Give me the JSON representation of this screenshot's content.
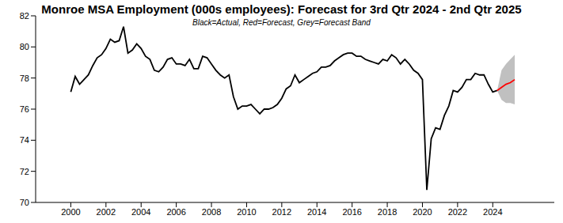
{
  "chart_data": {
    "type": "line",
    "title": "Monroe MSA Employment (000s employees): Forecast for 3rd Qtr 2024 - 2nd Qtr 2025",
    "subtitle": "Black=Actual, Red=Forecast, Grey=Forecast Band",
    "x": [
      2000,
      2000.25,
      2000.5,
      2000.75,
      2001,
      2001.25,
      2001.5,
      2001.75,
      2002,
      2002.25,
      2002.5,
      2002.75,
      2003,
      2003.25,
      2003.5,
      2003.75,
      2004,
      2004.25,
      2004.5,
      2004.75,
      2005,
      2005.25,
      2005.5,
      2005.75,
      2006,
      2006.25,
      2006.5,
      2006.75,
      2007,
      2007.25,
      2007.5,
      2007.75,
      2008,
      2008.25,
      2008.5,
      2008.75,
      2009,
      2009.25,
      2009.5,
      2009.75,
      2010,
      2010.25,
      2010.5,
      2010.75,
      2011,
      2011.25,
      2011.5,
      2011.75,
      2012,
      2012.25,
      2012.5,
      2012.75,
      2013,
      2013.25,
      2013.5,
      2013.75,
      2014,
      2014.25,
      2014.5,
      2014.75,
      2015,
      2015.25,
      2015.5,
      2015.75,
      2016,
      2016.25,
      2016.5,
      2016.75,
      2017,
      2017.25,
      2017.5,
      2017.75,
      2018,
      2018.25,
      2018.5,
      2018.75,
      2019,
      2019.25,
      2019.5,
      2019.75,
      2020,
      2020.25,
      2020.5,
      2020.75,
      2021,
      2021.25,
      2021.5,
      2021.75,
      2022,
      2022.25,
      2022.5,
      2022.75,
      2023,
      2023.25,
      2023.5,
      2023.75,
      2024,
      2024.25,
      2024.5,
      2024.75,
      2025,
      2025.25
    ],
    "series": [
      {
        "name": "Actual",
        "color": "#000000",
        "values": [
          77.1,
          78.1,
          77.6,
          77.9,
          78.2,
          78.8,
          79.3,
          79.5,
          79.9,
          80.5,
          80.3,
          80.4,
          81.3,
          79.6,
          79.8,
          80.2,
          79.9,
          79.4,
          79.2,
          78.5,
          78.4,
          78.7,
          79.2,
          79.3,
          78.9,
          78.9,
          78.8,
          79.2,
          78.6,
          78.6,
          79.4,
          79.3,
          78.9,
          78.5,
          78.2,
          78.0,
          78.2,
          76.8,
          76.0,
          76.2,
          76.2,
          76.3,
          76.0,
          75.7,
          76.0,
          76.0,
          76.1,
          76.3,
          76.7,
          77.3,
          77.5,
          78.2,
          77.7,
          77.9,
          78.1,
          78.3,
          78.4,
          78.7,
          78.7,
          78.8,
          79.1,
          79.3,
          79.5,
          79.6,
          79.6,
          79.4,
          79.4,
          79.2,
          79.1,
          79.0,
          78.9,
          79.2,
          79.1,
          79.5,
          79.3,
          78.9,
          79.2,
          78.9,
          78.5,
          78.3,
          77.9,
          70.8,
          74.1,
          74.8,
          74.7,
          75.6,
          76.2,
          77.2,
          77.1,
          77.4,
          77.9,
          77.9,
          78.3,
          78.2,
          78.2,
          77.6,
          77.1,
          77.2,
          null,
          null,
          null,
          null
        ]
      },
      {
        "name": "Forecast",
        "color": "#ff0000",
        "values": [
          null,
          null,
          null,
          null,
          null,
          null,
          null,
          null,
          null,
          null,
          null,
          null,
          null,
          null,
          null,
          null,
          null,
          null,
          null,
          null,
          null,
          null,
          null,
          null,
          null,
          null,
          null,
          null,
          null,
          null,
          null,
          null,
          null,
          null,
          null,
          null,
          null,
          null,
          null,
          null,
          null,
          null,
          null,
          null,
          null,
          null,
          null,
          null,
          null,
          null,
          null,
          null,
          null,
          null,
          null,
          null,
          null,
          null,
          null,
          null,
          null,
          null,
          null,
          null,
          null,
          null,
          null,
          null,
          null,
          null,
          null,
          null,
          null,
          null,
          null,
          null,
          null,
          null,
          null,
          null,
          null,
          null,
          null,
          null,
          null,
          null,
          null,
          null,
          null,
          null,
          null,
          null,
          null,
          null,
          null,
          null,
          null,
          77.2,
          77.4,
          77.6,
          77.7,
          77.9
        ]
      },
      {
        "name": "Forecast Band",
        "type": "band",
        "color": "#c0c0c0",
        "lower": [
          null,
          null,
          null,
          null,
          null,
          null,
          null,
          null,
          null,
          null,
          null,
          null,
          null,
          null,
          null,
          null,
          null,
          null,
          null,
          null,
          null,
          null,
          null,
          null,
          null,
          null,
          null,
          null,
          null,
          null,
          null,
          null,
          null,
          null,
          null,
          null,
          null,
          null,
          null,
          null,
          null,
          null,
          null,
          null,
          null,
          null,
          null,
          null,
          null,
          null,
          null,
          null,
          null,
          null,
          null,
          null,
          null,
          null,
          null,
          null,
          null,
          null,
          null,
          null,
          null,
          null,
          null,
          null,
          null,
          null,
          null,
          null,
          null,
          null,
          null,
          null,
          null,
          null,
          null,
          null,
          null,
          null,
          null,
          null,
          null,
          null,
          null,
          null,
          null,
          null,
          null,
          null,
          null,
          null,
          null,
          null,
          null,
          77.2,
          76.6,
          76.4,
          76.4,
          76.3
        ],
        "upper": [
          null,
          null,
          null,
          null,
          null,
          null,
          null,
          null,
          null,
          null,
          null,
          null,
          null,
          null,
          null,
          null,
          null,
          null,
          null,
          null,
          null,
          null,
          null,
          null,
          null,
          null,
          null,
          null,
          null,
          null,
          null,
          null,
          null,
          null,
          null,
          null,
          null,
          null,
          null,
          null,
          null,
          null,
          null,
          null,
          null,
          null,
          null,
          null,
          null,
          null,
          null,
          null,
          null,
          null,
          null,
          null,
          null,
          null,
          null,
          null,
          null,
          null,
          null,
          null,
          null,
          null,
          null,
          null,
          null,
          null,
          null,
          null,
          null,
          null,
          null,
          null,
          null,
          null,
          null,
          null,
          null,
          null,
          null,
          null,
          null,
          null,
          null,
          null,
          null,
          null,
          null,
          null,
          null,
          null,
          null,
          null,
          null,
          77.2,
          78.5,
          78.9,
          79.2,
          79.5
        ]
      }
    ],
    "xlim": [
      1998,
      2027.5
    ],
    "xticks": [
      2000,
      2002,
      2004,
      2006,
      2008,
      2010,
      2012,
      2014,
      2016,
      2018,
      2020,
      2022,
      2024
    ],
    "ylim": [
      70,
      82
    ],
    "yticks": [
      70,
      72,
      74,
      76,
      78,
      80,
      82
    ]
  }
}
